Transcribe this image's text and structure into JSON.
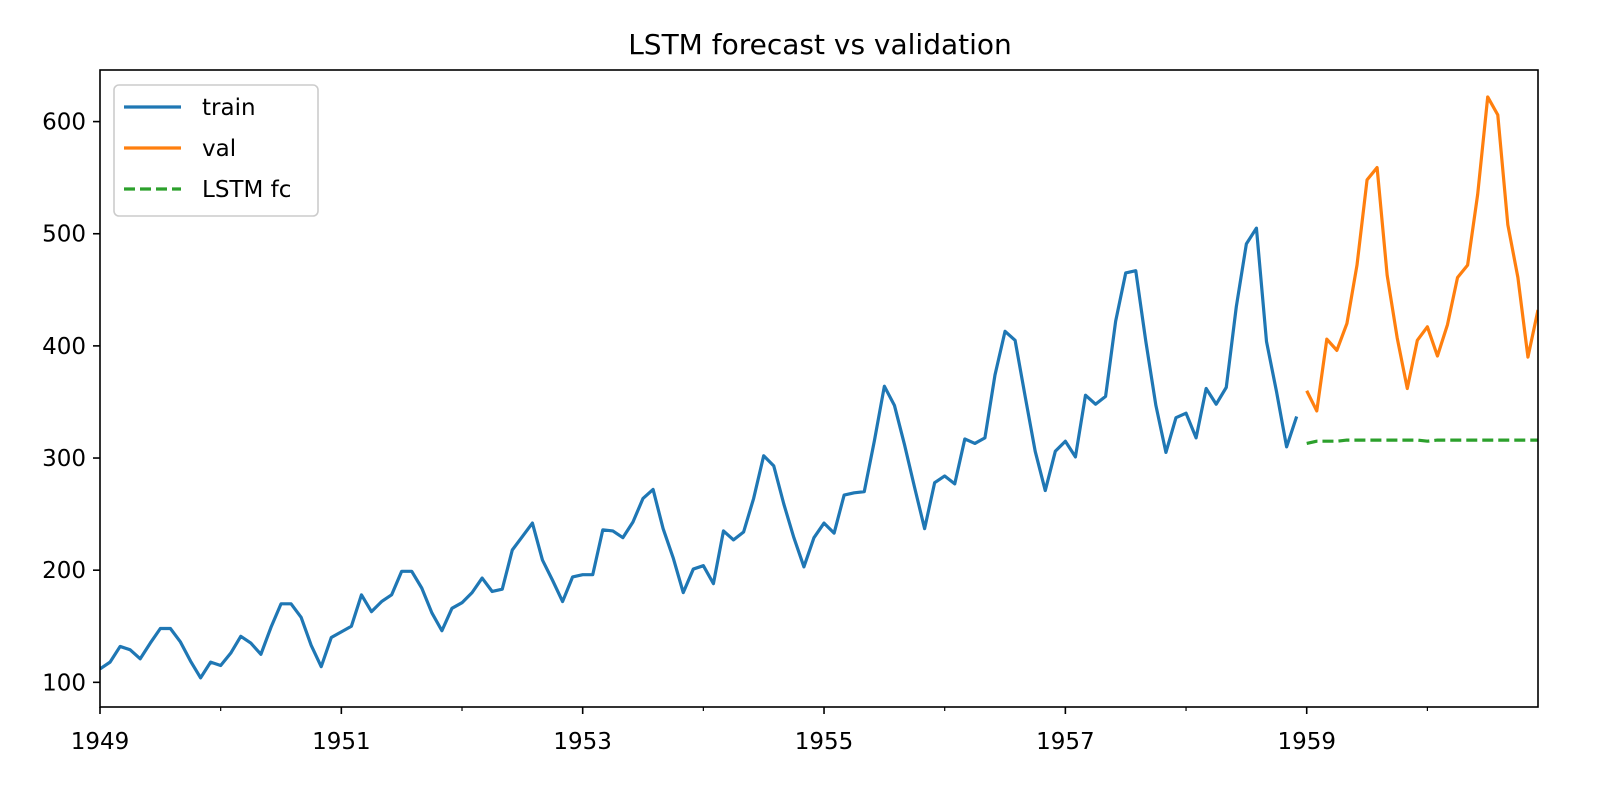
{
  "chart_data": {
    "type": "line",
    "title": "LSTM forecast vs validation",
    "xlabel": "",
    "ylabel": "",
    "x_ticks": [
      "1949",
      "1951",
      "1953",
      "1955",
      "1957",
      "1959"
    ],
    "x_tick_years": [
      1949,
      1951,
      1953,
      1955,
      1957,
      1959
    ],
    "x_minor_tick_years": [
      1950,
      1952,
      1954,
      1956,
      1958,
      1960
    ],
    "y_ticks": [
      100,
      200,
      300,
      400,
      500,
      600
    ],
    "y_tick_labels": [
      "100",
      "200",
      "300",
      "400",
      "500",
      "600"
    ],
    "xlim": [
      "1949-01",
      "1960-12"
    ],
    "ylim": [
      78,
      646
    ],
    "grid": false,
    "legend_position": "top-left",
    "series": [
      {
        "name": "train",
        "color": "#1f77b4",
        "style": "solid",
        "start": "1949-01",
        "frequency": "monthly",
        "values": [
          112,
          118,
          132,
          129,
          121,
          135,
          148,
          148,
          136,
          119,
          104,
          118,
          115,
          126,
          141,
          135,
          125,
          149,
          170,
          170,
          158,
          133,
          114,
          140,
          145,
          150,
          178,
          163,
          172,
          178,
          199,
          199,
          184,
          162,
          146,
          166,
          171,
          180,
          193,
          181,
          183,
          218,
          230,
          242,
          209,
          191,
          172,
          194,
          196,
          196,
          236,
          235,
          229,
          243,
          264,
          272,
          237,
          211,
          180,
          201,
          204,
          188,
          235,
          227,
          234,
          264,
          302,
          293,
          259,
          229,
          203,
          229,
          242,
          233,
          267,
          269,
          270,
          315,
          364,
          347,
          312,
          274,
          237,
          278,
          284,
          277,
          317,
          313,
          318,
          374,
          413,
          405,
          355,
          306,
          271,
          306,
          315,
          301,
          356,
          348,
          355,
          422,
          465,
          467,
          404,
          347,
          305,
          336,
          340,
          318,
          362,
          348,
          363,
          435,
          491,
          505,
          404,
          359,
          310,
          337
        ]
      },
      {
        "name": "val",
        "color": "#ff7f0e",
        "style": "solid",
        "start": "1959-01",
        "frequency": "monthly",
        "values": [
          360,
          342,
          406,
          396,
          420,
          472,
          548,
          559,
          463,
          407,
          362,
          405,
          417,
          391,
          419,
          461,
          472,
          535,
          622,
          606,
          508,
          461,
          390,
          432
        ]
      },
      {
        "name": "LSTM fc",
        "color": "#2ca02c",
        "style": "dashed",
        "start": "1959-01",
        "frequency": "monthly",
        "values": [
          313,
          315,
          315,
          315,
          316,
          316,
          316,
          316,
          316,
          316,
          316,
          316,
          315,
          316,
          316,
          316,
          316,
          316,
          316,
          316,
          316,
          316,
          316,
          316
        ]
      }
    ]
  }
}
